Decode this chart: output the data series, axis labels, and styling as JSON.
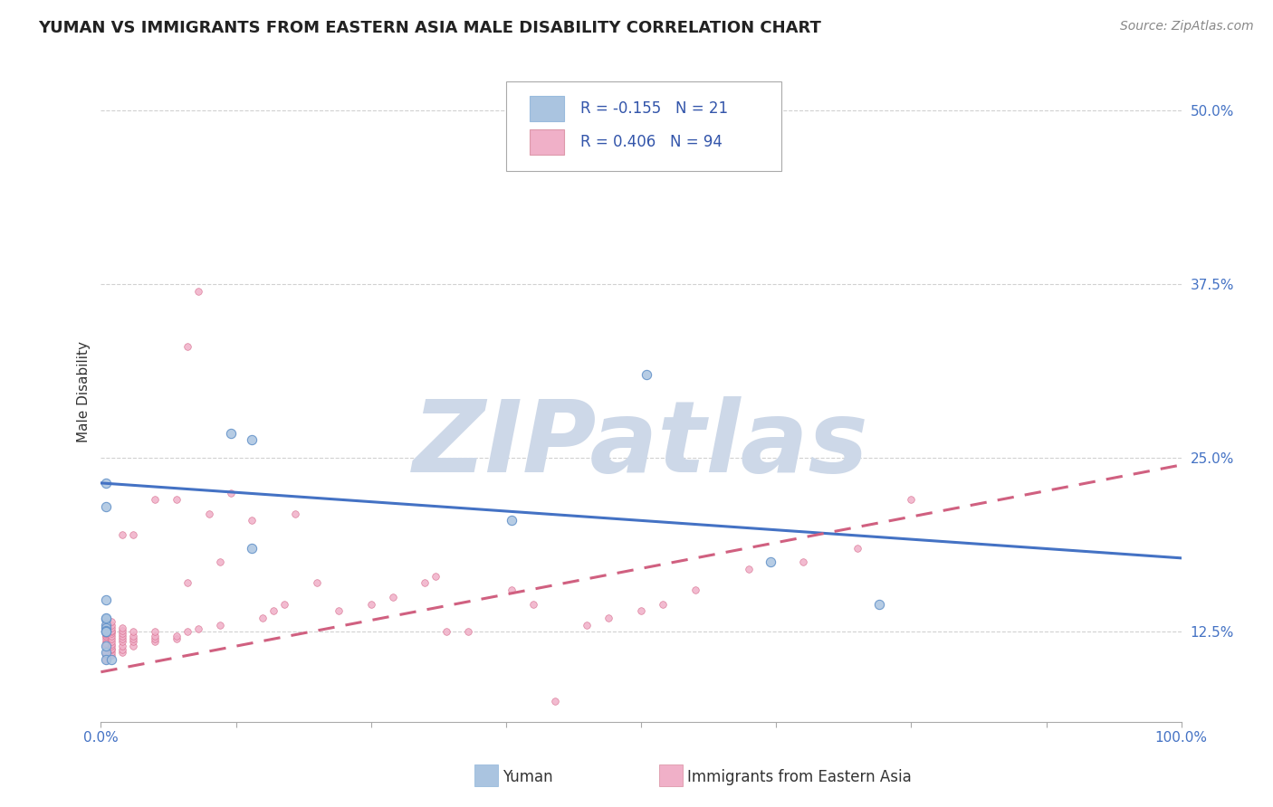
{
  "title": "YUMAN VS IMMIGRANTS FROM EASTERN ASIA MALE DISABILITY CORRELATION CHART",
  "source_text": "Source: ZipAtlas.com",
  "xlabel_yuman": "Yuman",
  "xlabel_immigrants": "Immigrants from Eastern Asia",
  "ylabel": "Male Disability",
  "series1_label": "Yuman",
  "series1_color": "#aac4e0",
  "series1_edge_color": "#6090c8",
  "series1_line_color": "#4472c4",
  "series1_R": -0.155,
  "series1_N": 21,
  "series2_label": "Immigrants from Eastern Asia",
  "series2_color": "#f0b0c8",
  "series2_edge_color": "#d87090",
  "series2_line_color": "#d06080",
  "series2_R": 0.406,
  "series2_N": 94,
  "xlim": [
    0.0,
    1.0
  ],
  "ylim": [
    0.06,
    0.535
  ],
  "yticks": [
    0.125,
    0.25,
    0.375,
    0.5
  ],
  "ytick_labels": [
    "12.5%",
    "25.0%",
    "37.5%",
    "50.0%"
  ],
  "xticks": [
    0.0,
    0.125,
    0.25,
    0.375,
    0.5,
    0.625,
    0.75,
    0.875,
    1.0
  ],
  "xtick_edge_labels": [
    "0.0%",
    "",
    "",
    "",
    "",
    "",
    "",
    "",
    "100.0%"
  ],
  "grid_color": "#cccccc",
  "background_color": "#ffffff",
  "watermark": "ZIPatlas",
  "watermark_color": "#cdd8e8",
  "series1_x": [
    0.005,
    0.12,
    0.14,
    0.005,
    0.005,
    0.005,
    0.005,
    0.005,
    0.005,
    0.005,
    0.005,
    0.01,
    0.005,
    0.14,
    0.005,
    0.62,
    0.72,
    0.005,
    0.005,
    0.505,
    0.38
  ],
  "series1_y": [
    0.232,
    0.268,
    0.263,
    0.215,
    0.148,
    0.134,
    0.13,
    0.128,
    0.126,
    0.11,
    0.105,
    0.105,
    0.115,
    0.185,
    0.135,
    0.175,
    0.145,
    0.125,
    0.125,
    0.31,
    0.205
  ],
  "series2_x": [
    0.005,
    0.005,
    0.005,
    0.005,
    0.005,
    0.005,
    0.005,
    0.005,
    0.005,
    0.005,
    0.005,
    0.005,
    0.005,
    0.005,
    0.005,
    0.005,
    0.005,
    0.005,
    0.005,
    0.005,
    0.005,
    0.01,
    0.01,
    0.01,
    0.01,
    0.01,
    0.01,
    0.01,
    0.01,
    0.01,
    0.01,
    0.01,
    0.01,
    0.01,
    0.01,
    0.01,
    0.02,
    0.02,
    0.02,
    0.02,
    0.02,
    0.02,
    0.02,
    0.02,
    0.02,
    0.02,
    0.03,
    0.03,
    0.03,
    0.03,
    0.03,
    0.03,
    0.05,
    0.05,
    0.05,
    0.05,
    0.05,
    0.07,
    0.07,
    0.07,
    0.08,
    0.08,
    0.08,
    0.09,
    0.09,
    0.1,
    0.11,
    0.11,
    0.12,
    0.14,
    0.15,
    0.16,
    0.17,
    0.18,
    0.2,
    0.22,
    0.25,
    0.27,
    0.3,
    0.31,
    0.32,
    0.34,
    0.38,
    0.4,
    0.42,
    0.45,
    0.47,
    0.5,
    0.52,
    0.55,
    0.6,
    0.65,
    0.7,
    0.75
  ],
  "series2_y": [
    0.108,
    0.115,
    0.118,
    0.12,
    0.122,
    0.122,
    0.123,
    0.124,
    0.125,
    0.126,
    0.127,
    0.128,
    0.129,
    0.13,
    0.131,
    0.132,
    0.105,
    0.108,
    0.11,
    0.115,
    0.117,
    0.108,
    0.11,
    0.112,
    0.113,
    0.115,
    0.116,
    0.118,
    0.12,
    0.122,
    0.124,
    0.125,
    0.126,
    0.128,
    0.13,
    0.132,
    0.11,
    0.112,
    0.115,
    0.118,
    0.12,
    0.122,
    0.124,
    0.126,
    0.128,
    0.195,
    0.115,
    0.118,
    0.12,
    0.122,
    0.125,
    0.195,
    0.118,
    0.12,
    0.122,
    0.125,
    0.22,
    0.12,
    0.122,
    0.22,
    0.125,
    0.16,
    0.33,
    0.127,
    0.37,
    0.21,
    0.13,
    0.175,
    0.225,
    0.205,
    0.135,
    0.14,
    0.145,
    0.21,
    0.16,
    0.14,
    0.145,
    0.15,
    0.16,
    0.165,
    0.125,
    0.125,
    0.155,
    0.145,
    0.075,
    0.13,
    0.135,
    0.14,
    0.145,
    0.155,
    0.17,
    0.175,
    0.185,
    0.22
  ],
  "series1_dot_size": 55,
  "series2_dot_size": 30,
  "legend_R_color": "#3355aa",
  "legend_fontsize": 12,
  "title_fontsize": 13,
  "tick_fontsize": 11,
  "trend1_start_x": 0.0,
  "trend1_end_x": 1.0,
  "trend1_start_y": 0.232,
  "trend1_end_y": 0.178,
  "trend2_start_x": 0.0,
  "trend2_end_x": 1.0,
  "trend2_start_y": 0.096,
  "trend2_end_y": 0.245
}
